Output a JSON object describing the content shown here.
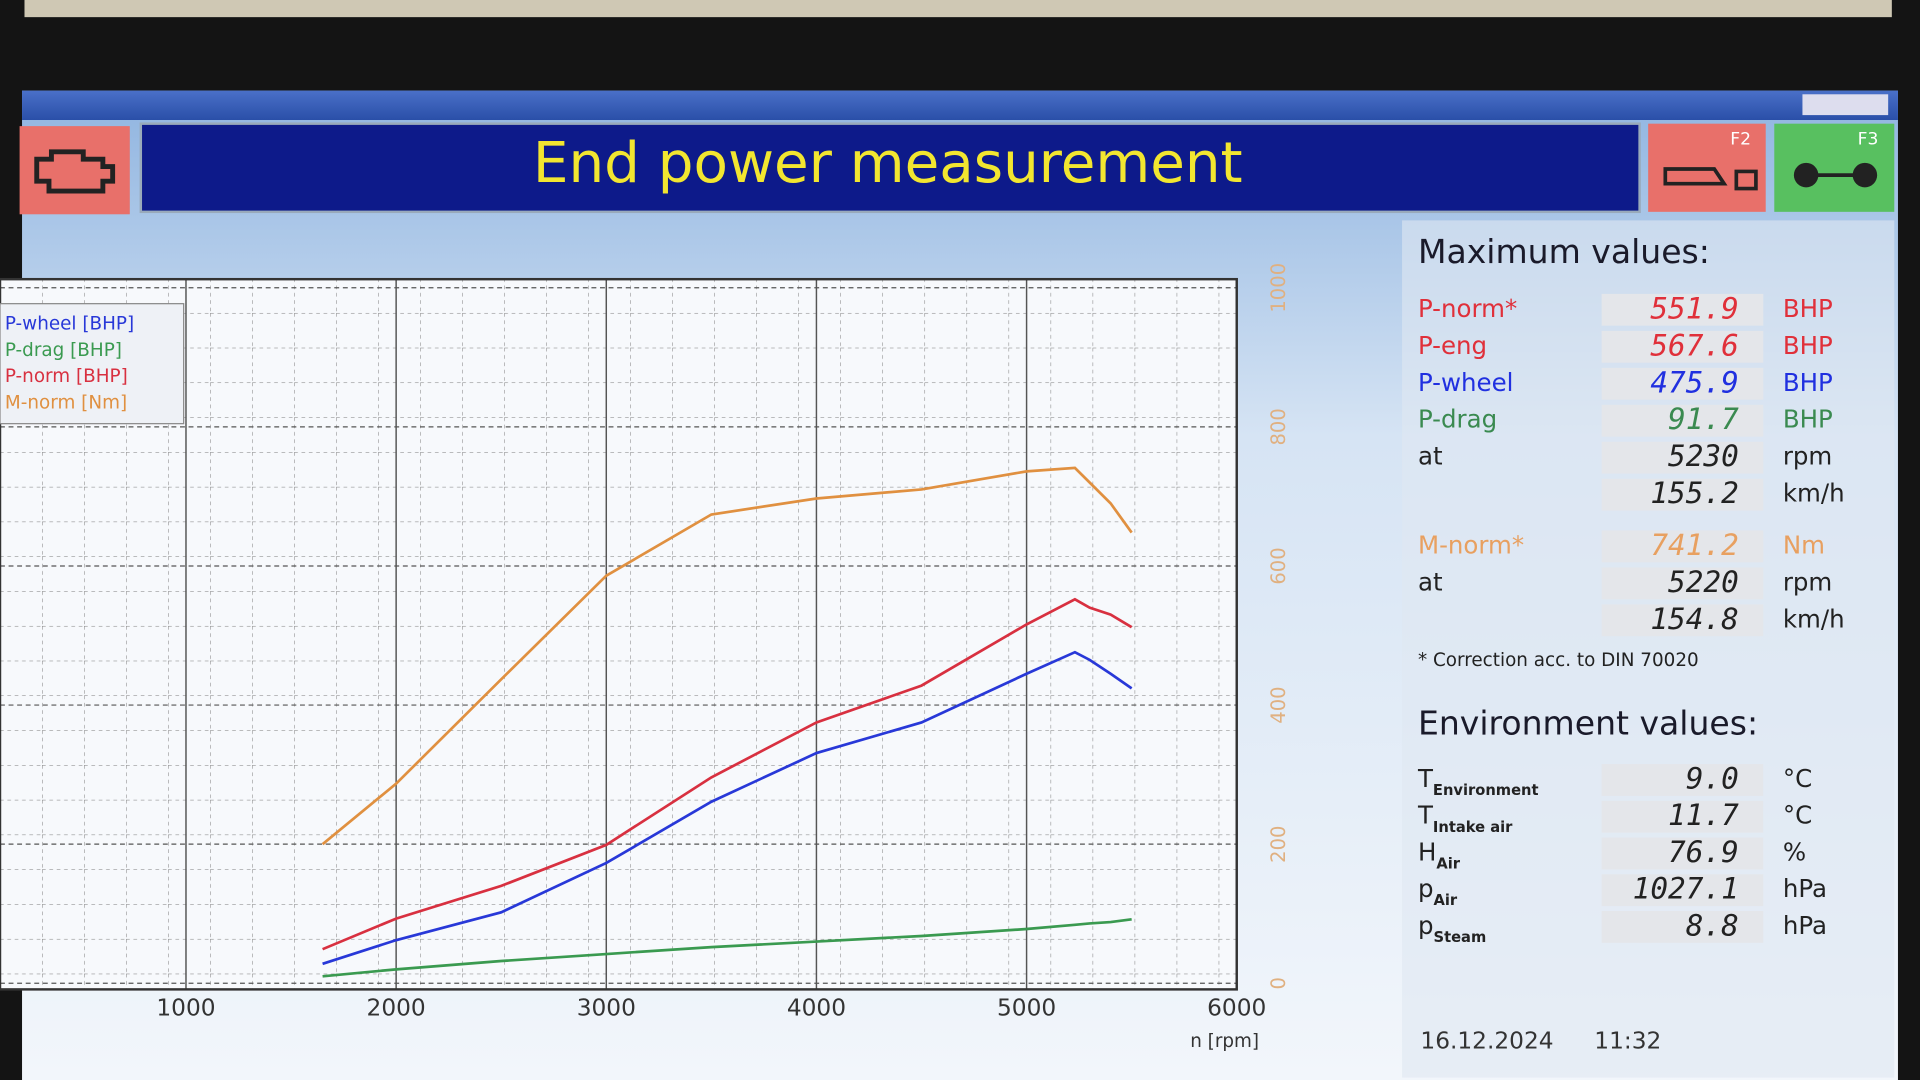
{
  "header": {
    "title": "End power measurement",
    "f2": "F2",
    "f3": "F3"
  },
  "chart_data": {
    "type": "line",
    "x": [
      1650,
      2000,
      2500,
      3000,
      3500,
      4000,
      4500,
      5000,
      5230,
      5300,
      5400,
      5500
    ],
    "series": [
      {
        "name": "P-wheel [BHP]",
        "color": "#2838d8",
        "values": [
          28,
          62,
          102,
          173,
          261,
          331,
          375,
          445,
          476,
          465,
          445,
          424
        ]
      },
      {
        "name": "P-drag [BHP]",
        "color": "#3a9a50",
        "values": [
          10,
          20,
          32,
          42,
          52,
          60,
          68,
          78,
          84,
          86,
          88,
          92
        ]
      },
      {
        "name": "P-norm [BHP]",
        "color": "#d83040",
        "values": [
          49,
          93,
          140,
          199,
          296,
          375,
          428,
          516,
          552,
          540,
          530,
          512
        ]
      },
      {
        "name": "M-norm [Nm]",
        "color": "#e09040",
        "values": [
          200,
          287,
          437,
          586,
          674,
          697,
          710,
          736,
          741,
          720,
          690,
          648
        ]
      }
    ],
    "xlabel": "n [rpm]",
    "xlim": [
      115,
      6000
    ],
    "xticks": [
      1000,
      2000,
      3000,
      4000,
      5000,
      6000
    ],
    "ylim": [
      0,
      1000
    ],
    "yticks": [
      0,
      200,
      400,
      600,
      800,
      1000
    ],
    "grid": true,
    "legend": "upper left"
  },
  "max_values": {
    "title": "Maximum values:",
    "rows": [
      {
        "label": "P-norm*",
        "value": "551.9",
        "unit": "BHP",
        "color": "#e0303a"
      },
      {
        "label": "P-eng",
        "value": "567.6",
        "unit": "BHP",
        "color": "#e0303a"
      },
      {
        "label": "P-wheel",
        "value": "475.9",
        "unit": "BHP",
        "color": "#2030e0"
      },
      {
        "label": "P-drag",
        "value": "91.7",
        "unit": "BHP",
        "color": "#3a8a50"
      },
      {
        "label": "at",
        "value": "5230",
        "unit": "rpm",
        "color": "#222222"
      },
      {
        "value": "155.2",
        "unit": "km/h",
        "color": "#222222"
      },
      {
        "label": "M-norm*",
        "value": "741.2",
        "unit": "Nm",
        "color": "#e8a060"
      },
      {
        "label": "at",
        "value": "5220",
        "unit": "rpm",
        "color": "#222222"
      },
      {
        "value": "154.8",
        "unit": "km/h",
        "color": "#222222"
      }
    ],
    "note": "* Correction acc. to DIN 70020"
  },
  "environment": {
    "title": "Environment values:",
    "rows": [
      {
        "label": "T",
        "sub": "Environment",
        "value": "9.0",
        "unit": "°C"
      },
      {
        "label": "T",
        "sub": "Intake air",
        "value": "11.7",
        "unit": "°C"
      },
      {
        "label": "H",
        "sub": "Air",
        "value": "76.9",
        "unit": "%"
      },
      {
        "label": "p",
        "sub": "Air",
        "value": "1027.1",
        "unit": "hPa"
      },
      {
        "label": "p",
        "sub": "Steam",
        "value": "8.8",
        "unit": "hPa"
      }
    ]
  },
  "footer": {
    "date": "16.12.2024",
    "time": "11:32"
  }
}
